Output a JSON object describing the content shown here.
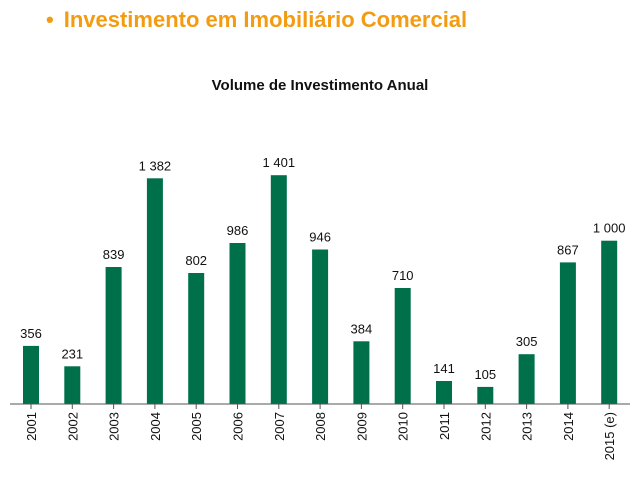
{
  "page": {
    "heading": "Investimento em Imobiliário Comercial",
    "bullet": "•"
  },
  "colors": {
    "heading": "#f39c12",
    "bar": "#00704a",
    "axis": "#555555"
  },
  "chart_data": {
    "type": "bar",
    "title": "Volume de Investimento Anual",
    "xlabel": "",
    "ylabel": "",
    "ylim": [
      0,
      1500
    ],
    "grid": false,
    "categories": [
      "2001",
      "2002",
      "2003",
      "2004",
      "2005",
      "2006",
      "2007",
      "2008",
      "2009",
      "2010",
      "2011",
      "2012",
      "2013",
      "2014",
      "2015 (e)"
    ],
    "values": [
      356,
      231,
      839,
      1382,
      802,
      986,
      1401,
      946,
      384,
      710,
      141,
      105,
      305,
      867,
      1000
    ],
    "value_labels": [
      "356",
      "231",
      "839",
      "1 382",
      "802",
      "986",
      "1 401",
      "946",
      "384",
      "710",
      "141",
      "105",
      "305",
      "867",
      "1 000"
    ]
  }
}
